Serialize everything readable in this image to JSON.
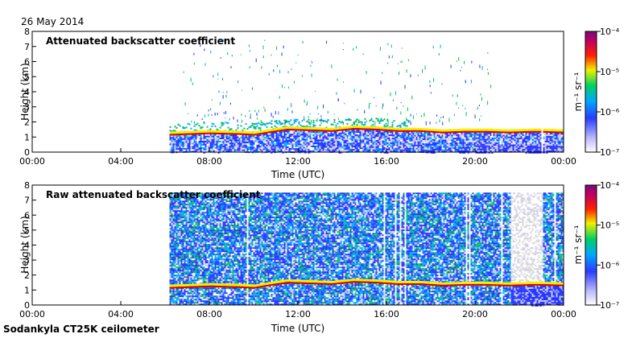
{
  "date": "26 May 2014",
  "footer": "Sodankyla CT25K ceilometer",
  "chart_data": [
    {
      "type": "heatmap",
      "title": "Attenuated backscatter coefficient",
      "xlabel": "Time (UTC)",
      "ylabel": "Height (km)",
      "x_ticks": [
        "00:00",
        "04:00",
        "08:00",
        "12:00",
        "16:00",
        "20:00",
        "00:00"
      ],
      "x_tick_hours": [
        0,
        4,
        8,
        12,
        16,
        20,
        24
      ],
      "xlim_hours": [
        0,
        24
      ],
      "ylim": [
        0,
        8
      ],
      "y_ticks": [
        0,
        1,
        2,
        3,
        4,
        5,
        6,
        7,
        8
      ],
      "data_start_hour": 6.2,
      "data_gap_hour": 23.0,
      "boundary_layer_height_km": [
        [
          6.2,
          1.2
        ],
        [
          8,
          1.3
        ],
        [
          9.3,
          1.25
        ],
        [
          10,
          1.2
        ],
        [
          10.8,
          1.4
        ],
        [
          11.5,
          1.55
        ],
        [
          12.5,
          1.5
        ],
        [
          13.5,
          1.45
        ],
        [
          14.5,
          1.6
        ],
        [
          15.5,
          1.55
        ],
        [
          16.5,
          1.45
        ],
        [
          17.5,
          1.45
        ],
        [
          18.5,
          1.35
        ],
        [
          19.5,
          1.4
        ],
        [
          20.5,
          1.4
        ],
        [
          21.5,
          1.35
        ],
        [
          22.5,
          1.4
        ],
        [
          23,
          1.4
        ],
        [
          24,
          1.35
        ]
      ],
      "colorbar": {
        "label": "m⁻¹ sr⁻¹",
        "tick_labels": [
          "10⁻⁴",
          "10⁻⁵",
          "10⁻⁶",
          "10⁻⁷"
        ],
        "tick_exponents": [
          -4,
          -5,
          -6,
          -7
        ],
        "range_log10": [
          -7,
          -4
        ]
      }
    },
    {
      "type": "heatmap",
      "title": "Raw attenuated backscatter coefficient",
      "xlabel": "Time (UTC)",
      "ylabel": "Height (km)",
      "x_ticks": [
        "00:00",
        "04:00",
        "08:00",
        "12:00",
        "16:00",
        "20:00",
        "00:00"
      ],
      "x_tick_hours": [
        0,
        4,
        8,
        12,
        16,
        20,
        24
      ],
      "xlim_hours": [
        0,
        24
      ],
      "ylim": [
        0,
        8
      ],
      "y_ticks": [
        0,
        1,
        2,
        3,
        4,
        5,
        6,
        7,
        8
      ],
      "data_start_hour": 6.2,
      "noise_top_km": 7.5,
      "sparse_noise_hours": [
        21.6,
        23.0
      ],
      "boundary_layer_height_km": [
        [
          6.2,
          1.2
        ],
        [
          8,
          1.3
        ],
        [
          9.3,
          1.25
        ],
        [
          10,
          1.2
        ],
        [
          10.8,
          1.4
        ],
        [
          11.5,
          1.55
        ],
        [
          12.5,
          1.5
        ],
        [
          13.5,
          1.45
        ],
        [
          14.5,
          1.6
        ],
        [
          15.5,
          1.55
        ],
        [
          16.5,
          1.45
        ],
        [
          17.5,
          1.45
        ],
        [
          18.5,
          1.35
        ],
        [
          19.5,
          1.4
        ],
        [
          20.5,
          1.4
        ],
        [
          21.5,
          1.35
        ],
        [
          22.5,
          1.4
        ],
        [
          23,
          1.4
        ],
        [
          24,
          1.35
        ]
      ],
      "colorbar": {
        "label": "m⁻¹ sr⁻¹",
        "tick_labels": [
          "10⁻⁴",
          "10⁻⁵",
          "10⁻⁶",
          "10⁻⁷"
        ],
        "tick_exponents": [
          -4,
          -5,
          -6,
          -7
        ],
        "range_log10": [
          -7,
          -4
        ]
      }
    }
  ]
}
